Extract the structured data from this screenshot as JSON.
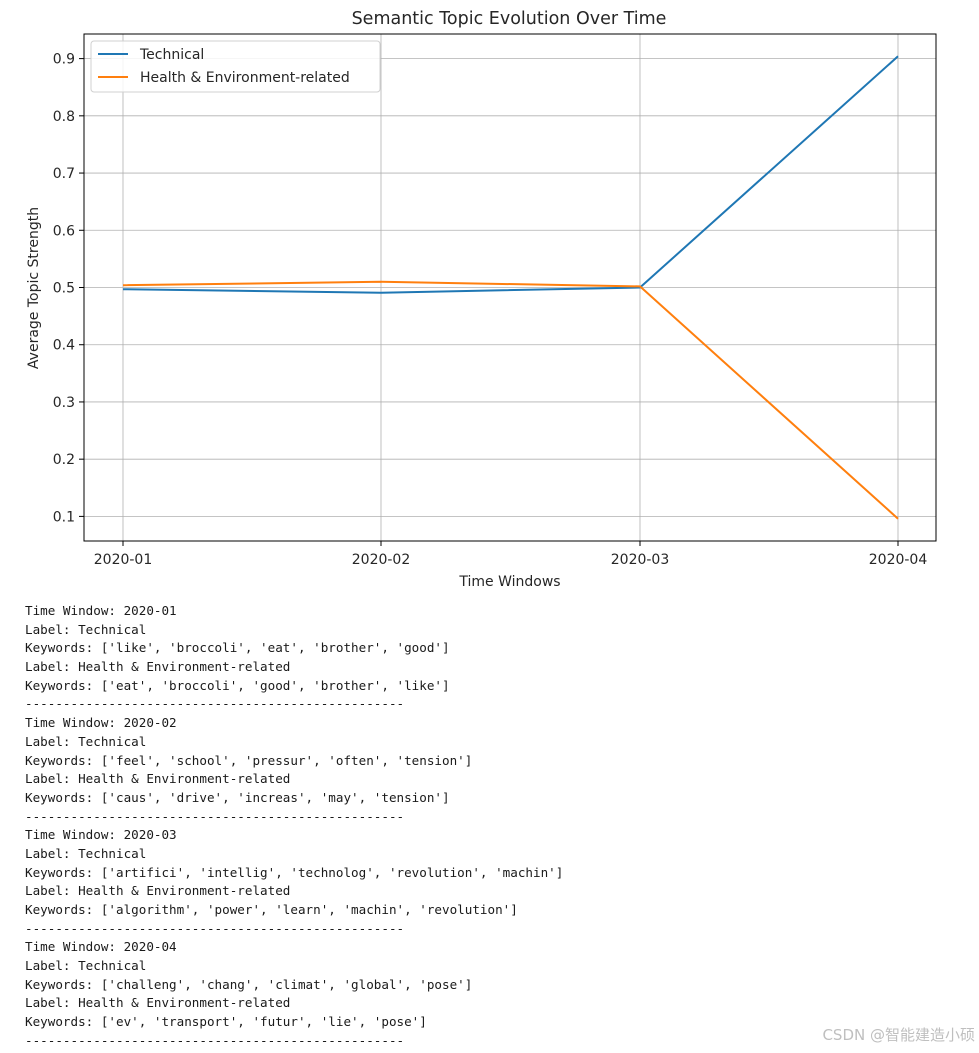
{
  "chart_data": {
    "type": "line",
    "title": "Semantic Topic Evolution Over Time",
    "xlabel": "Time Windows",
    "ylabel": "Average Topic Strength",
    "categories": [
      "2020-01",
      "2020-02",
      "2020-03",
      "2020-04"
    ],
    "series": [
      {
        "name": "Technical",
        "color": "#1f77b4",
        "values": [
          0.497,
          0.491,
          0.5,
          0.904
        ]
      },
      {
        "name": "Health & Environment-related",
        "color": "#ff7f0e",
        "values": [
          0.504,
          0.51,
          0.502,
          0.096
        ]
      }
    ],
    "yticks": [
      "0.1",
      "0.2",
      "0.3",
      "0.4",
      "0.5",
      "0.6",
      "0.7",
      "0.8",
      "0.9"
    ],
    "ylim": [
      0.057,
      0.943
    ],
    "grid": true,
    "legend_position": "upper-left"
  },
  "console": {
    "blocks": [
      {
        "window": "Time Window: 2020-01",
        "technical_label": "Label: Technical",
        "technical_keywords": "Keywords: ['like', 'broccoli', 'eat', 'brother', 'good']",
        "health_label": "Label: Health & Environment-related",
        "health_keywords": "Keywords: ['eat', 'broccoli', 'good', 'brother', 'like']",
        "separator": "--------------------------------------------------"
      },
      {
        "window": "Time Window: 2020-02",
        "technical_label": "Label: Technical",
        "technical_keywords": "Keywords: ['feel', 'school', 'pressur', 'often', 'tension']",
        "health_label": "Label: Health & Environment-related",
        "health_keywords": "Keywords: ['caus', 'drive', 'increas', 'may', 'tension']",
        "separator": "--------------------------------------------------"
      },
      {
        "window": "Time Window: 2020-03",
        "technical_label": "Label: Technical",
        "technical_keywords": "Keywords: ['artifici', 'intellig', 'technolog', 'revolution', 'machin']",
        "health_label": "Label: Health & Environment-related",
        "health_keywords": "Keywords: ['algorithm', 'power', 'learn', 'machin', 'revolution']",
        "separator": "--------------------------------------------------"
      },
      {
        "window": "Time Window: 2020-04",
        "technical_label": "Label: Technical",
        "technical_keywords": "Keywords: ['challeng', 'chang', 'climat', 'global', 'pose']",
        "health_label": "Label: Health & Environment-related",
        "health_keywords": "Keywords: ['ev', 'transport', 'futur', 'lie', 'pose']",
        "separator": "--------------------------------------------------"
      }
    ]
  },
  "watermark": "CSDN @智能建造小硕"
}
